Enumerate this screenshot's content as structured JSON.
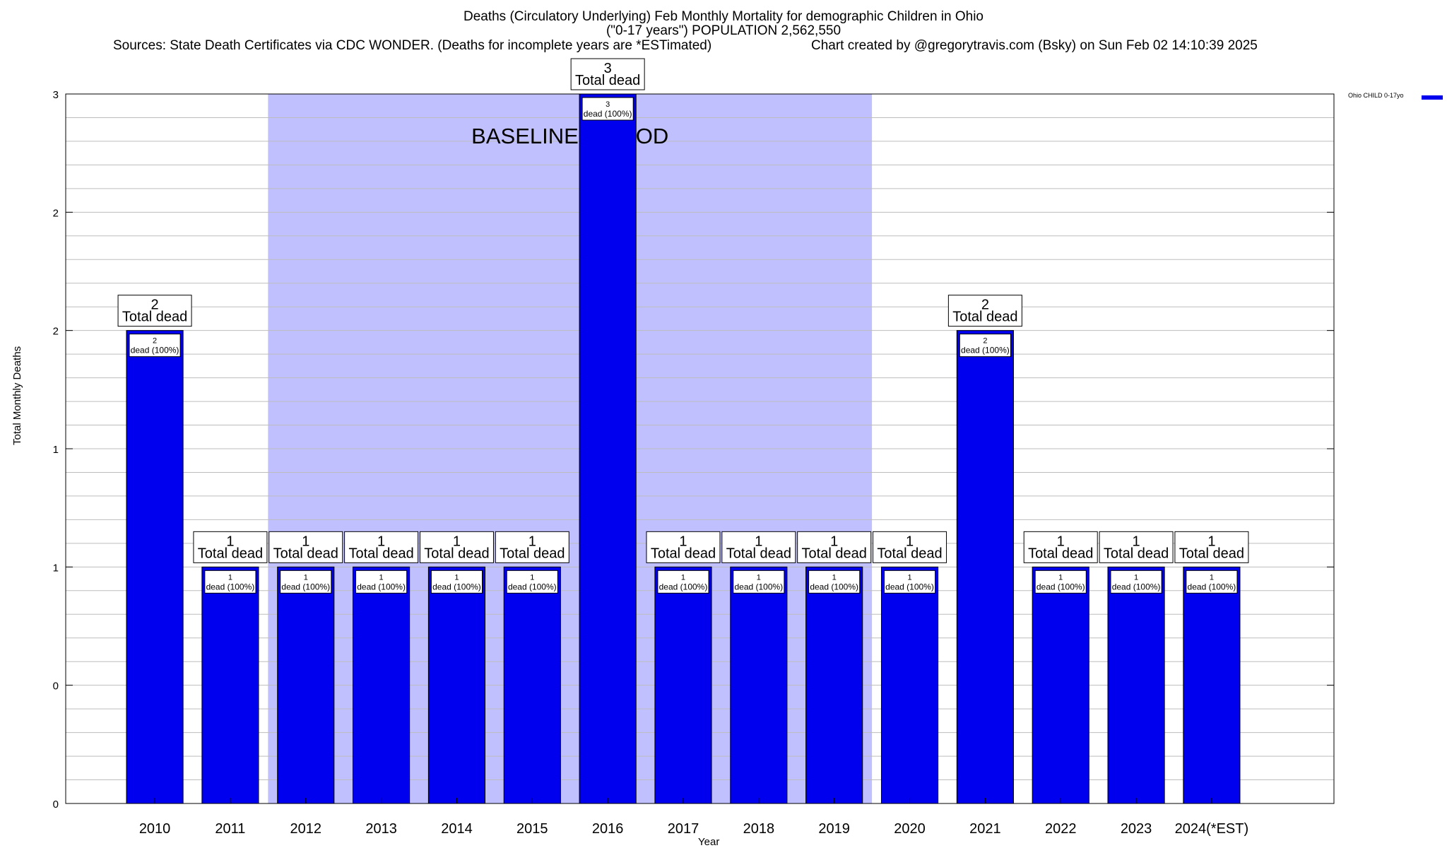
{
  "title": {
    "line1": "Deaths (Circulatory Underlying) Feb Monthly Mortality for demographic Children in Ohio",
    "line2": "(\"0-17 years\") POPULATION 2,562,550",
    "sources": "Sources: State Death Certificates via CDC WONDER. (Deaths for incomplete years are *ESTimated)",
    "credit": "Chart created by @gregorytravis.com (Bsky) on Sun Feb 02 14:10:39 2025"
  },
  "legend": {
    "label": "Ohio CHILD 0-17yo",
    "color": "#0000ee"
  },
  "baseline_label": "BASELINE PERIOD",
  "chart_data": {
    "type": "bar",
    "xlabel": "Year",
    "ylabel": "Total Monthly Deaths",
    "categories": [
      "2010",
      "2011",
      "2012",
      "2013",
      "2014",
      "2015",
      "2016",
      "2017",
      "2018",
      "2019",
      "2020",
      "2021",
      "2022",
      "2023",
      "2024(*EST)"
    ],
    "series": [
      {
        "name": "Ohio CHILD 0-17yo",
        "values": [
          2,
          1,
          1,
          1,
          1,
          1,
          3,
          1,
          1,
          1,
          1,
          2,
          1,
          1,
          1
        ],
        "color": "#0000ee"
      }
    ],
    "ylim": [
      0,
      3
    ],
    "yticks": [
      0,
      0.5,
      1,
      1.5,
      2,
      2.5,
      3
    ],
    "ytick_labels": [
      "0",
      "0",
      "1",
      "1",
      "2",
      "2",
      "3"
    ],
    "grid": true,
    "baseline_period": [
      "2012",
      "2019"
    ],
    "baseline_color": "#c0c0ff",
    "bar_top_label_suffix": "Total dead",
    "bar_inner_label_suffix": "dead (100%)",
    "legend_position": "top-right"
  }
}
